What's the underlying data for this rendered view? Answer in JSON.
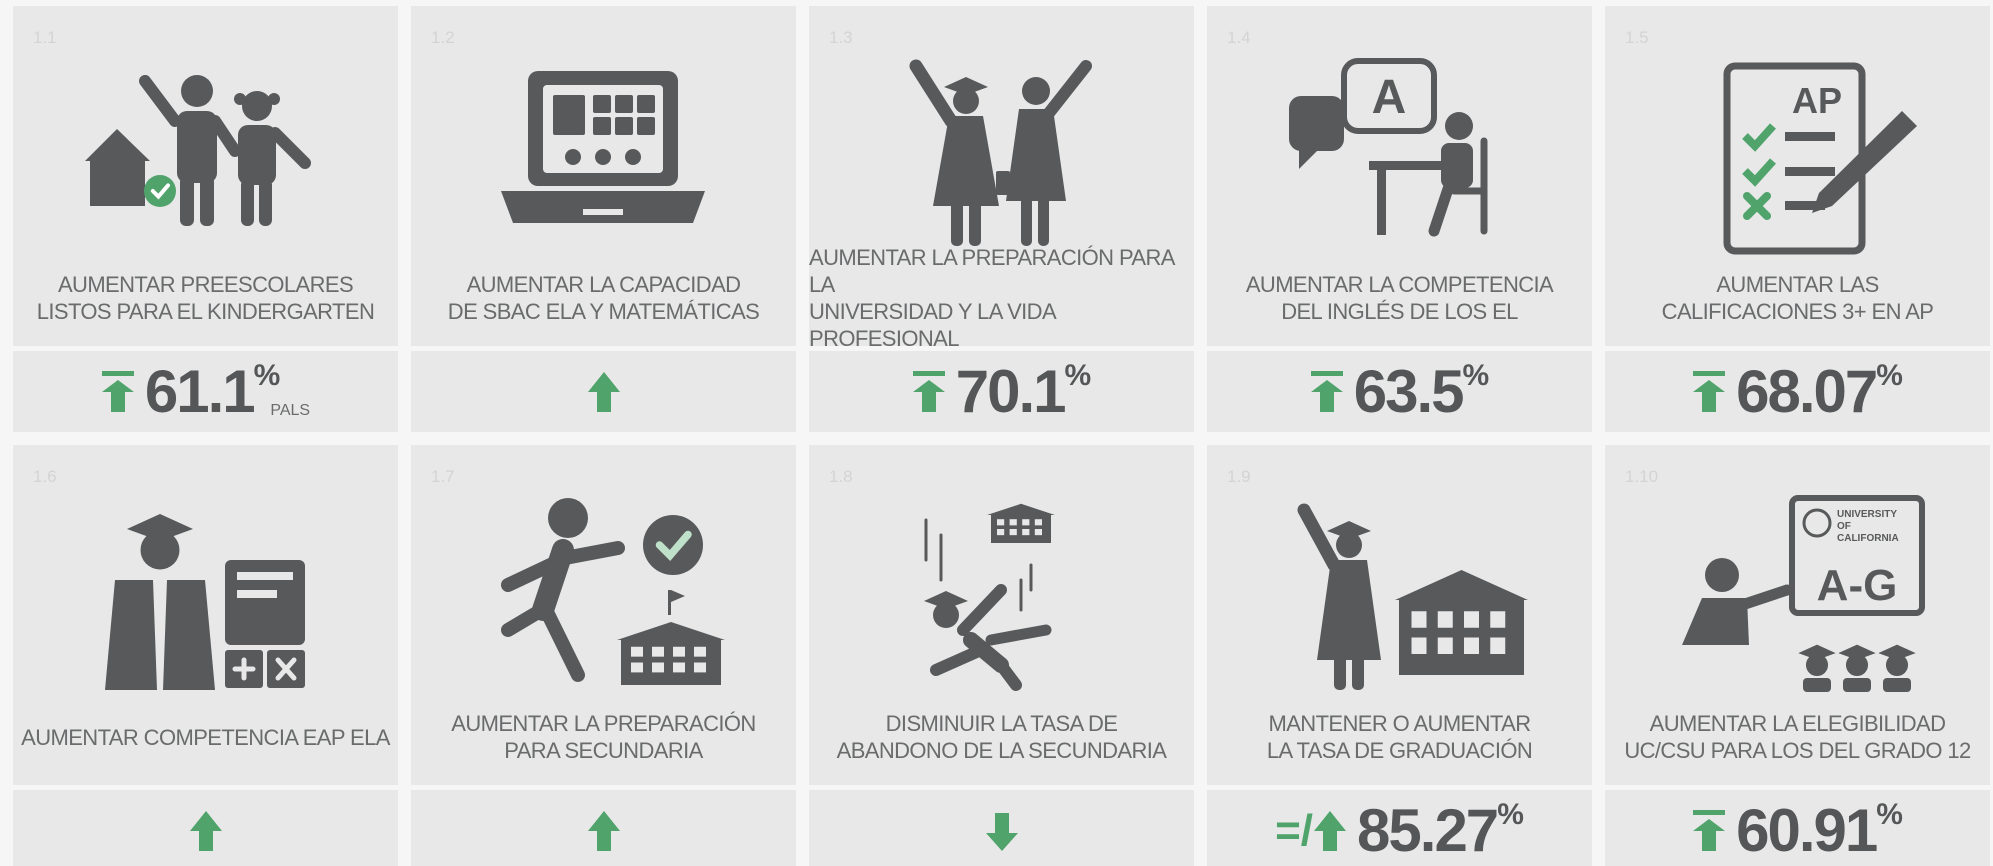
{
  "cards": [
    {
      "number": "1.1",
      "title_lines": [
        "AUMENTAR PREESCOLARES",
        "LISTOS PARA EL KINDERGARTEN"
      ],
      "stat": {
        "trend": "bar-up",
        "value": 61.1,
        "unit": "%",
        "note": "PALS"
      }
    },
    {
      "number": "1.2",
      "title_lines": [
        "AUMENTAR LA CAPACIDAD",
        "DE SBAC ELA Y MATEMÁTICAS"
      ],
      "stat": {
        "trend": "up"
      }
    },
    {
      "number": "1.3",
      "title_lines": [
        "AUMENTAR LA PREPARACIÓN PARA LA",
        "UNIVERSIDAD Y LA VIDA PROFESIONAL"
      ],
      "stat": {
        "trend": "bar-up",
        "value": 70.1,
        "unit": "%"
      }
    },
    {
      "number": "1.4",
      "title_lines": [
        "AUMENTAR LA COMPETENCIA",
        "DEL INGLÉS DE LOS EL"
      ],
      "icon_texts": [
        "A"
      ],
      "stat": {
        "trend": "bar-up",
        "value": 63.5,
        "unit": "%"
      }
    },
    {
      "number": "1.5",
      "title_lines": [
        "AUMENTAR LAS",
        "CALIFICACIONES 3+ EN AP"
      ],
      "icon_texts": [
        "AP"
      ],
      "stat": {
        "trend": "bar-up",
        "value": 68.07,
        "unit": "%"
      }
    },
    {
      "number": "1.6",
      "title_lines": [
        "AUMENTAR COMPETENCIA EAP ELA"
      ],
      "stat": {
        "trend": "up"
      }
    },
    {
      "number": "1.7",
      "title_lines": [
        "AUMENTAR LA PREPARACIÓN",
        "PARA SECUNDARIA"
      ],
      "stat": {
        "trend": "up"
      }
    },
    {
      "number": "1.8",
      "title_lines": [
        "DISMINUIR LA TASA DE",
        "ABANDONO DE LA SECUNDARIA"
      ],
      "stat": {
        "trend": "down"
      }
    },
    {
      "number": "1.9",
      "title_lines": [
        "MANTENER O AUMENTAR",
        "LA TASA DE GRADUACIÓN"
      ],
      "stat": {
        "trend": "up",
        "prefix": "=/",
        "value": 85.27,
        "unit": "%"
      }
    },
    {
      "number": "1.10",
      "title_lines": [
        "AUMENTAR LA ELEGIBILIDAD",
        "UC/CSU PARA LOS DEL GRADO 12"
      ],
      "icon_texts": [
        "UNIVERSITY",
        "OF",
        "CALIFORNIA",
        "A-G"
      ],
      "stat": {
        "trend": "bar-up",
        "value": 60.91,
        "unit": "%"
      }
    }
  ]
}
